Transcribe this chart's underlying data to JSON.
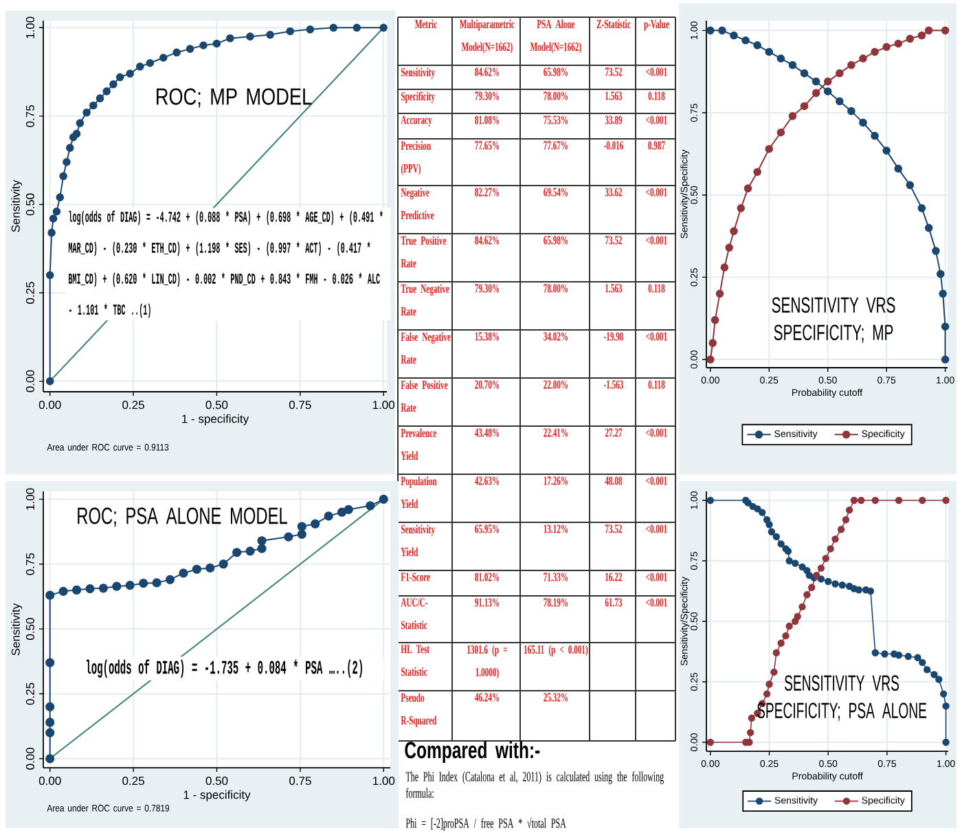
{
  "chart_data": [
    {
      "type": "line",
      "title": "ROC; MP MODEL",
      "xlabel": "1 - specificity",
      "ylabel": "Sensitivity",
      "xlim": [
        -0.02,
        1.01
      ],
      "ylim": [
        -0.03,
        1.02
      ],
      "xticks": [
        {
          "value": 0,
          "label": "0.00"
        },
        {
          "value": 0.25,
          "label": "0.25"
        },
        {
          "value": 0.5,
          "label": "0.50"
        },
        {
          "value": 0.75,
          "label": "0.75"
        },
        {
          "value": 1,
          "label": "1.00"
        }
      ],
      "yticks": [
        {
          "value": 0,
          "label": "0.00"
        },
        {
          "value": 0.25,
          "label": "0.25"
        },
        {
          "value": 0.5,
          "label": "0.50"
        },
        {
          "value": 0.75,
          "label": "0.75"
        },
        {
          "value": 1,
          "label": "1.00"
        }
      ],
      "grid": true,
      "marker": "circle",
      "annotations": [
        "Area under ROC curve = 0.9113",
        "log(odds of DIAG) = -4.742 + (0.088 * PSA) + (0.698 * AGE_CD) + (0.491 * MAR_CD) - (0.230 * ETH_CD) + (1.198 * SES) - (0.997 * ACT) - (0.417 * BMI_CD) + (0.620 * LIN_CD) - 0.002 * PND_CD + 0.843 * FMH - 0.026 * ALC - 1.101 * TBC ..(1)"
      ],
      "series": [
        {
          "type": "line",
          "color": "#3b8070",
          "marker": "none",
          "x": [
            0,
            1
          ],
          "values": [
            0,
            1
          ]
        },
        {
          "color": "#1a476f",
          "x": [
            0,
            0,
            0.005,
            0.01,
            0.02,
            0.03,
            0.04,
            0.05,
            0.06,
            0.07,
            0.08,
            0.09,
            0.11,
            0.13,
            0.15,
            0.17,
            0.19,
            0.21,
            0.24,
            0.27,
            0.3,
            0.34,
            0.38,
            0.42,
            0.46,
            0.5,
            0.54,
            0.6,
            0.66,
            0.72,
            0.78,
            0.85,
            0.92,
            1.0
          ],
          "values": [
            0,
            0.3,
            0.42,
            0.46,
            0.48,
            0.52,
            0.58,
            0.62,
            0.66,
            0.69,
            0.7,
            0.73,
            0.76,
            0.78,
            0.8,
            0.82,
            0.84,
            0.86,
            0.87,
            0.89,
            0.9,
            0.915,
            0.93,
            0.94,
            0.95,
            0.955,
            0.97,
            0.975,
            0.98,
            0.99,
            0.995,
            1.0,
            1.0,
            1.0
          ]
        }
      ]
    },
    {
      "type": "other",
      "categories": [
        "Metric",
        "Multiparametric Model(N=1662)",
        "PSA Alone Model(N=1662)",
        "Z-Statistic",
        "p-Value"
      ],
      "y_categories": [
        "Sensitivity",
        "Specificity",
        "Accuracy",
        "Precision (PPV)",
        "Negative Predictive",
        "True Positive Rate",
        "True Negative Rate",
        "False Negative Rate",
        "False Positive Rate",
        "Prevalence Yield",
        "Population Yield",
        "Sensitivity Yield",
        "F1-Score",
        "AUC/C-Statistic",
        "HL Test Statistic",
        "Pseudo R-Squared"
      ],
      "cell_labels": [
        [
          "84.62%",
          "65.98%",
          "73.52",
          "<0.001"
        ],
        [
          "79.30%",
          "78.00%",
          "1.563",
          "0.118"
        ],
        [
          "81.08%",
          "75.53%",
          "33.89",
          "<0.001"
        ],
        [
          "77.65%",
          "77.67%",
          "-0.016",
          "0.987"
        ],
        [
          "82.27%",
          "69.54%",
          "33.62",
          "<0.001"
        ],
        [
          "84.62%",
          "65.98%",
          "73.52",
          "<0.001"
        ],
        [
          "79.30%",
          "78.00%",
          "1.563",
          "0.118"
        ],
        [
          "15.38%",
          "34.02%",
          "-19.98",
          "<0.001"
        ],
        [
          "20.70%",
          "22.00%",
          "-1.563",
          "0.118"
        ],
        [
          "43.48%",
          "22.41%",
          "27.27",
          "<0.001"
        ],
        [
          "42.63%",
          "17.26%",
          "48.08",
          "<0.001"
        ],
        [
          "65.95%",
          "13.12%",
          "73.52",
          "<0.001"
        ],
        [
          "81.02%",
          "71.33%",
          "16.22",
          "<0.001"
        ],
        [
          "91.13%",
          "78.19%",
          "61.73",
          "<0.001"
        ],
        [
          "1301.6 (p = 1.0000)",
          "165.11 (p < 0.001)",
          null,
          null
        ],
        [
          "46.24%",
          "25.32%",
          null,
          null
        ]
      ],
      "annotations": [
        "Compared with:-",
        "The Phi Index (Catalona et al, 2011) is calculated using the following formula:",
        "Phi = [-2]proPSA / free PSA * √total PSA"
      ]
    },
    {
      "type": "line",
      "title": "SENSITIVITY VRS SPECIFICITY; MP",
      "xlabel": "Probability cutoff",
      "ylabel": "Sensitivity/Specificity",
      "xlim": [
        -0.017,
        1.01
      ],
      "ylim": [
        -0.025,
        1.03
      ],
      "xticks": [
        {
          "value": 0,
          "label": "0.00"
        },
        {
          "value": 0.25,
          "label": "0.25"
        },
        {
          "value": 0.5,
          "label": "0.50"
        },
        {
          "value": 0.75,
          "label": "0.75"
        },
        {
          "value": 1,
          "label": "1.00"
        }
      ],
      "yticks": [
        {
          "value": 0,
          "label": "0.00"
        },
        {
          "value": 0.25,
          "label": "0.25"
        },
        {
          "value": 0.5,
          "label": "0.50"
        },
        {
          "value": 0.75,
          "label": "0.75"
        },
        {
          "value": 1,
          "label": "1.00"
        }
      ],
      "grid": true,
      "marker": "circle",
      "legend": "bottom",
      "series": [
        {
          "name": "Sensitivity",
          "color": "#1a476f",
          "x": [
            0,
            0.05,
            0.1,
            0.15,
            0.2,
            0.25,
            0.3,
            0.35,
            0.4,
            0.45,
            0.5,
            0.55,
            0.6,
            0.65,
            0.7,
            0.75,
            0.8,
            0.85,
            0.9,
            0.93,
            0.96,
            0.98,
            0.99,
            1.0,
            1.0
          ],
          "values": [
            1,
            1,
            0.985,
            0.97,
            0.955,
            0.935,
            0.915,
            0.895,
            0.87,
            0.845,
            0.815,
            0.785,
            0.755,
            0.72,
            0.68,
            0.635,
            0.58,
            0.53,
            0.46,
            0.4,
            0.33,
            0.26,
            0.2,
            0.1,
            0
          ]
        },
        {
          "name": "Specificity",
          "color": "#90353b",
          "x": [
            0,
            0.01,
            0.02,
            0.04,
            0.06,
            0.08,
            0.1,
            0.13,
            0.16,
            0.2,
            0.25,
            0.3,
            0.35,
            0.4,
            0.45,
            0.5,
            0.55,
            0.6,
            0.65,
            0.7,
            0.75,
            0.8,
            0.85,
            0.9,
            0.93,
            1.0
          ],
          "values": [
            0,
            0.05,
            0.12,
            0.2,
            0.28,
            0.34,
            0.39,
            0.46,
            0.52,
            0.57,
            0.64,
            0.69,
            0.74,
            0.77,
            0.81,
            0.845,
            0.87,
            0.895,
            0.915,
            0.935,
            0.95,
            0.96,
            0.975,
            0.985,
            1.0,
            1.0
          ]
        }
      ]
    },
    {
      "type": "line",
      "title": "ROC; PSA ALONE MODEL",
      "xlabel": "1 - specificity",
      "ylabel": "Sensitivity",
      "xlim": [
        -0.02,
        1.02
      ],
      "ylim": [
        -0.035,
        1.03
      ],
      "xticks": [
        {
          "value": 0,
          "label": "0.00"
        },
        {
          "value": 0.25,
          "label": "0.25"
        },
        {
          "value": 0.5,
          "label": "0.50"
        },
        {
          "value": 0.75,
          "label": "0.75"
        },
        {
          "value": 1,
          "label": "1.00"
        }
      ],
      "yticks": [
        {
          "value": 0,
          "label": "0.00"
        },
        {
          "value": 0.25,
          "label": "0.25"
        },
        {
          "value": 0.5,
          "label": "0.50"
        },
        {
          "value": 0.75,
          "label": "0.75"
        },
        {
          "value": 1,
          "label": "1.00"
        }
      ],
      "grid": true,
      "marker": "circle",
      "annotations": [
        "Area under ROC curve = 0.7819",
        "log(odds of DIAG) = -1.735 + 0.084 * PSA …..(2)"
      ],
      "series": [
        {
          "type": "line",
          "color": "#3b8070",
          "marker": "none",
          "x": [
            0,
            1
          ],
          "values": [
            0,
            1
          ]
        },
        {
          "color": "#1a476f",
          "x": [
            0,
            0,
            0,
            0,
            0,
            0,
            0.04,
            0.08,
            0.12,
            0.16,
            0.2,
            0.24,
            0.28,
            0.32,
            0.36,
            0.4,
            0.44,
            0.48,
            0.52,
            0.56,
            0.6,
            0.635,
            0.635,
            0.715,
            0.755,
            0.755,
            0.795,
            0.835,
            0.875,
            0.895,
            0.96,
            1.0
          ],
          "values": [
            0,
            0.1,
            0.14,
            0.2,
            0.37,
            0.63,
            0.645,
            0.65,
            0.655,
            0.657,
            0.664,
            0.668,
            0.676,
            0.678,
            0.69,
            0.715,
            0.73,
            0.735,
            0.75,
            0.795,
            0.8,
            0.81,
            0.84,
            0.855,
            0.865,
            0.895,
            0.905,
            0.935,
            0.95,
            0.96,
            0.975,
            1.0
          ]
        }
      ]
    },
    {
      "type": "line",
      "title": "SENSITIVITY VRS SPECIFICITY; PSA ALONE",
      "xlabel": "Probability cutoff",
      "ylabel": "Sensitivity/Specificity",
      "xlim": [
        -0.017,
        1.01
      ],
      "ylim": [
        -0.037,
        1.037
      ],
      "xticks": [
        {
          "value": 0,
          "label": "0.00"
        },
        {
          "value": 0.25,
          "label": "0.25"
        },
        {
          "value": 0.5,
          "label": "0.50"
        },
        {
          "value": 0.75,
          "label": "0.75"
        },
        {
          "value": 1,
          "label": "1.00"
        }
      ],
      "yticks": [
        {
          "value": 0,
          "label": "0.00"
        },
        {
          "value": 0.25,
          "label": "0.25"
        },
        {
          "value": 0.5,
          "label": "0.50"
        },
        {
          "value": 0.75,
          "label": "0.75"
        },
        {
          "value": 1,
          "label": "1.00"
        }
      ],
      "grid": true,
      "marker": "circle",
      "legend": "bottom",
      "series": [
        {
          "name": "Sensitivity",
          "color": "#1a476f",
          "x": [
            0,
            0.15,
            0.16,
            0.18,
            0.2,
            0.22,
            0.24,
            0.25,
            0.26,
            0.28,
            0.3,
            0.32,
            0.33,
            0.335,
            0.36,
            0.39,
            0.41,
            0.42,
            0.44,
            0.47,
            0.5,
            0.53,
            0.56,
            0.59,
            0.61,
            0.63,
            0.66,
            0.68,
            0.7,
            0.74,
            0.78,
            0.8,
            0.84,
            0.88,
            0.9,
            0.92,
            0.95,
            0.97,
            0.99,
            1.0,
            1.0
          ],
          "values": [
            1,
            1,
            0.99,
            0.975,
            0.965,
            0.95,
            0.92,
            0.9,
            0.87,
            0.85,
            0.82,
            0.8,
            0.79,
            0.75,
            0.74,
            0.725,
            0.71,
            0.69,
            0.68,
            0.675,
            0.665,
            0.655,
            0.65,
            0.645,
            0.635,
            0.63,
            0.63,
            0.625,
            0.37,
            0.365,
            0.365,
            0.36,
            0.355,
            0.35,
            0.33,
            0.3,
            0.28,
            0.26,
            0.2,
            0.15,
            0
          ]
        },
        {
          "name": "Specificity",
          "color": "#90353b",
          "x": [
            0,
            0.15,
            0.165,
            0.17,
            0.175,
            0.2,
            0.22,
            0.24,
            0.25,
            0.27,
            0.28,
            0.3,
            0.32,
            0.335,
            0.36,
            0.37,
            0.39,
            0.41,
            0.43,
            0.45,
            0.47,
            0.49,
            0.51,
            0.53,
            0.555,
            0.575,
            0.59,
            0.61,
            0.64,
            0.7,
            0.8,
            0.9,
            1.0
          ],
          "values": [
            0,
            0,
            0,
            0.04,
            0.1,
            0.12,
            0.16,
            0.2,
            0.24,
            0.29,
            0.37,
            0.41,
            0.44,
            0.48,
            0.5,
            0.52,
            0.56,
            0.61,
            0.64,
            0.69,
            0.72,
            0.76,
            0.8,
            0.84,
            0.88,
            0.92,
            0.96,
            1.0,
            1.0,
            1.0,
            1.0,
            1.0,
            1.0
          ]
        }
      ]
    }
  ]
}
